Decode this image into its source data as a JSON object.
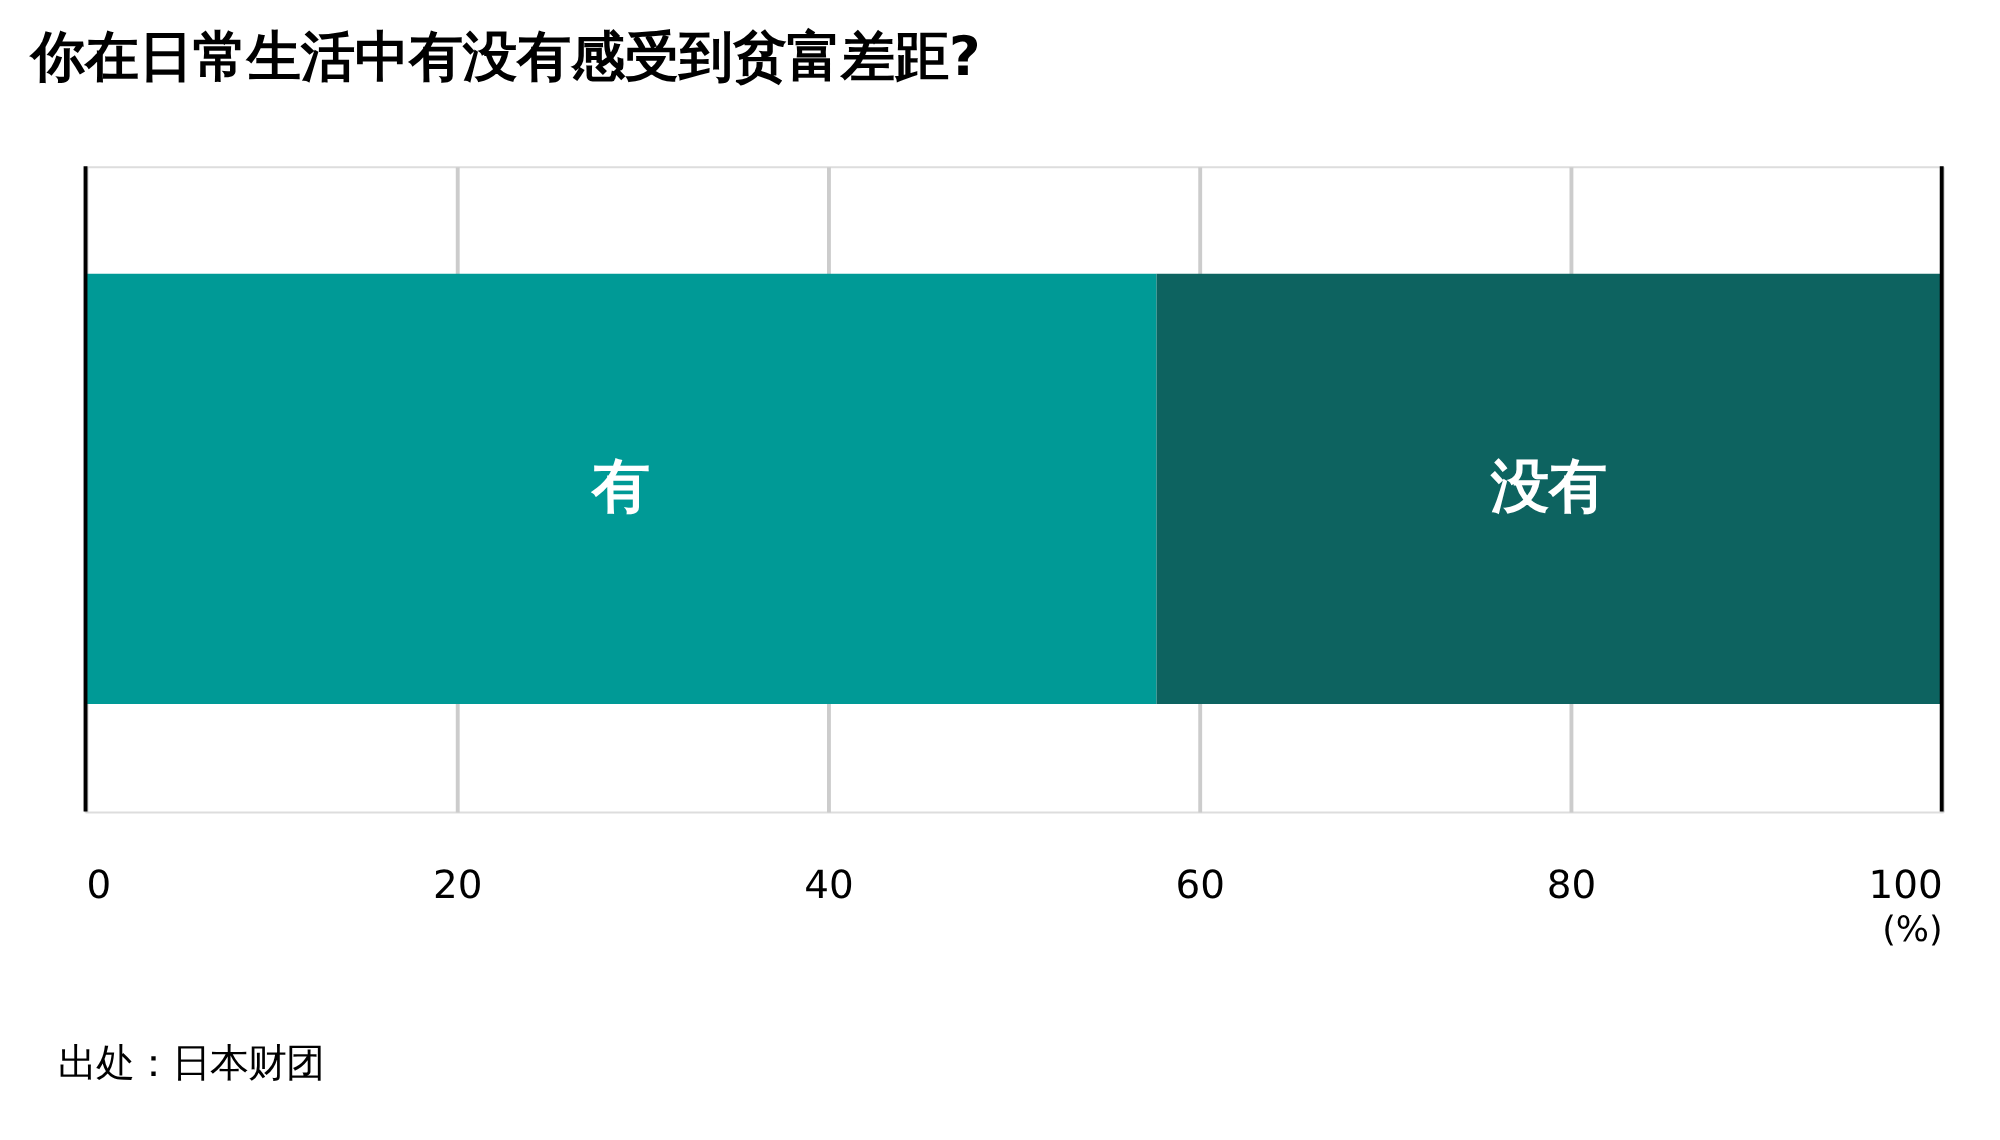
{
  "chart_data": {
    "type": "bar",
    "orientation": "horizontal",
    "stacked": true,
    "title": "你在日常生活中有没有感受到贫富差距?",
    "categories": [
      null
    ],
    "series": [
      {
        "name": "有",
        "color": "#009a96",
        "values": [
          57.7
        ]
      },
      {
        "name": "没有",
        "color": "#0d6360",
        "values": [
          42.3
        ]
      }
    ],
    "xlim": [
      0,
      100
    ],
    "xticks": [
      0,
      20,
      40,
      60,
      80,
      100
    ],
    "xlabel": "(%)",
    "grid": "x",
    "legend": false,
    "annotations": [
      "出处：日本财团"
    ]
  }
}
